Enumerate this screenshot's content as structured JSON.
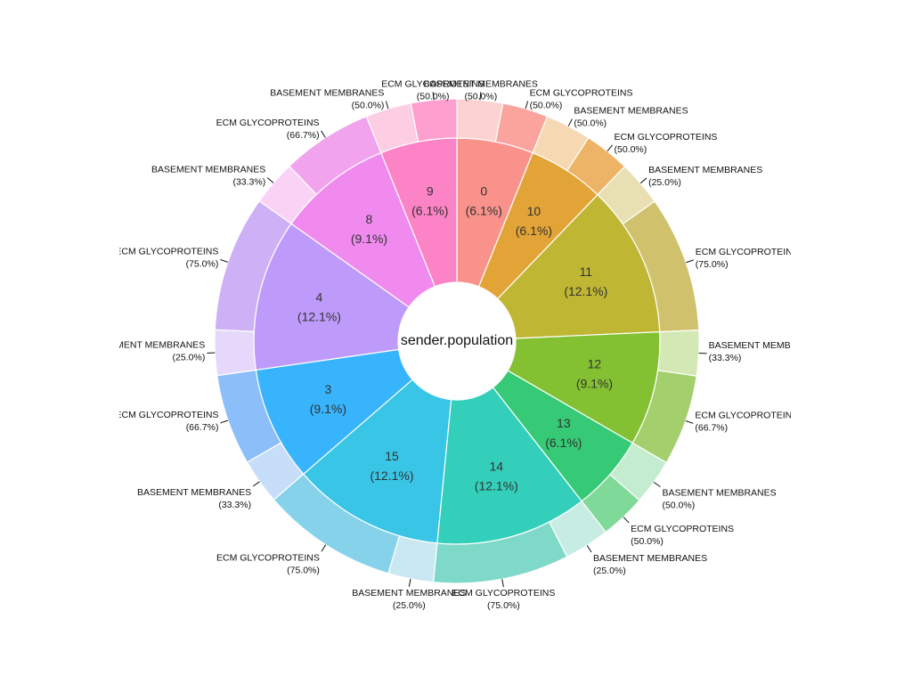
{
  "chart_data": {
    "type": "pie",
    "subtype": "sunburst-donut",
    "center_label": "sender.population",
    "inner": [
      {
        "name": "0",
        "percent": "(6.1%)",
        "value": 6.1,
        "color": "#F8928A"
      },
      {
        "name": "10",
        "percent": "(6.1%)",
        "value": 6.1,
        "color": "#E3A437"
      },
      {
        "name": "11",
        "percent": "(12.1%)",
        "value": 12.1,
        "color": "#BFB634"
      },
      {
        "name": "12",
        "percent": "(9.1%)",
        "value": 9.1,
        "color": "#83C132"
      },
      {
        "name": "13",
        "percent": "(6.1%)",
        "value": 6.1,
        "color": "#36C976"
      },
      {
        "name": "14",
        "percent": "(12.1%)",
        "value": 12.1,
        "color": "#33CFBA"
      },
      {
        "name": "15",
        "percent": "(12.1%)",
        "value": 12.1,
        "color": "#38C5E6"
      },
      {
        "name": "3",
        "percent": "(9.1%)",
        "value": 9.1,
        "color": "#37B4FB"
      },
      {
        "name": "4",
        "percent": "(12.1%)",
        "value": 12.1,
        "color": "#BE9BFA"
      },
      {
        "name": "8",
        "percent": "(9.1%)",
        "value": 9.1,
        "color": "#F08AEE"
      },
      {
        "name": "9",
        "percent": "(6.1%)",
        "value": 6.1,
        "color": "#FC83C6"
      }
    ],
    "outer": [
      {
        "parent": 0,
        "label": "BASEMENT MEMBRANES",
        "percent": "(50.0%)",
        "share": 50.0,
        "color": "#FCD3D0"
      },
      {
        "parent": 0,
        "label": "ECM GLYCOPROTEINS",
        "percent": "(50.0%)",
        "share": 50.0,
        "color": "#FAA49D"
      },
      {
        "parent": 1,
        "label": "BASEMENT MEMBRANES",
        "percent": "(50.0%)",
        "share": 50.0,
        "color": "#F6D9B2"
      },
      {
        "parent": 1,
        "label": "ECM GLYCOPROTEINS",
        "percent": "(50.0%)",
        "share": 50.0,
        "color": "#EDB467"
      },
      {
        "parent": 2,
        "label": "BASEMENT MEMBRANES",
        "percent": "(25.0%)",
        "share": 25.0,
        "color": "#E8DFB3"
      },
      {
        "parent": 2,
        "label": "ECM GLYCOPROTEINS",
        "percent": "(75.0%)",
        "share": 75.0,
        "color": "#D0C26C"
      },
      {
        "parent": 3,
        "label": "BASEMENT MEMBRANES",
        "percent": "(33.3%)",
        "share": 33.3,
        "color": "#D3E8B5"
      },
      {
        "parent": 3,
        "label": "ECM GLYCOPROTEINS",
        "percent": "(66.7%)",
        "share": 66.7,
        "color": "#A3D06C"
      },
      {
        "parent": 4,
        "label": "BASEMENT MEMBRANES",
        "percent": "(50.0%)",
        "share": 50.0,
        "color": "#C3EDCE"
      },
      {
        "parent": 4,
        "label": "ECM GLYCOPROTEINS",
        "percent": "(50.0%)",
        "share": 50.0,
        "color": "#7FD998"
      },
      {
        "parent": 5,
        "label": "BASEMENT MEMBRANES",
        "percent": "(25.0%)",
        "share": 25.0,
        "color": "#C6ECE4"
      },
      {
        "parent": 5,
        "label": "ECM GLYCOPROTEINS",
        "percent": "(75.0%)",
        "share": 75.0,
        "color": "#7FD9C8"
      },
      {
        "parent": 6,
        "label": "BASEMENT MEMBRANES",
        "percent": "(25.0%)",
        "share": 25.0,
        "color": "#C9E8F2"
      },
      {
        "parent": 6,
        "label": "ECM GLYCOPROTEINS",
        "percent": "(75.0%)",
        "share": 75.0,
        "color": "#86D2EA"
      },
      {
        "parent": 7,
        "label": "BASEMENT MEMBRANES",
        "percent": "(33.3%)",
        "share": 33.3,
        "color": "#C7DEFB"
      },
      {
        "parent": 7,
        "label": "ECM GLYCOPROTEINS",
        "percent": "(66.7%)",
        "share": 66.7,
        "color": "#8CBFFA"
      },
      {
        "parent": 8,
        "label": "BASEMENT MEMBRANES",
        "percent": "(25.0%)",
        "share": 25.0,
        "color": "#E6D8FB"
      },
      {
        "parent": 8,
        "label": "ECM GLYCOPROTEINS",
        "percent": "(75.0%)",
        "share": 75.0,
        "color": "#CDB0F6"
      },
      {
        "parent": 9,
        "label": "BASEMENT MEMBRANES",
        "percent": "(33.3%)",
        "share": 33.3,
        "color": "#FAD2F6"
      },
      {
        "parent": 9,
        "label": "ECM GLYCOPROTEINS",
        "percent": "(66.7%)",
        "share": 66.7,
        "color": "#F1A3EE"
      },
      {
        "parent": 10,
        "label": "BASEMENT MEMBRANES",
        "percent": "(50.0%)",
        "share": 50.0,
        "color": "#FDCDE3"
      },
      {
        "parent": 10,
        "label": "ECM GLYCOPROTEINS",
        "percent": "(50.0%)",
        "share": 50.0,
        "color": "#FD9FCF"
      }
    ]
  }
}
